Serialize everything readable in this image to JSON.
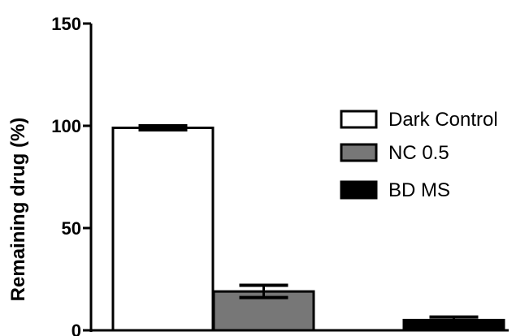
{
  "chart_data": {
    "type": "bar",
    "title": "",
    "xlabel": "",
    "ylabel": "Remaining drug (%)",
    "ylim": [
      0,
      150
    ],
    "yticks": [
      0,
      50,
      100,
      150
    ],
    "grid": false,
    "legend_position": "right",
    "series": [
      {
        "name": "Dark Control",
        "value": 99,
        "error": 1,
        "color": "#ffffff"
      },
      {
        "name": "NC 0.5",
        "value": 19,
        "error": 3,
        "color": "#777777"
      },
      {
        "name": "BD MS",
        "value": 5,
        "error": 1.5,
        "color": "#000000"
      }
    ]
  }
}
